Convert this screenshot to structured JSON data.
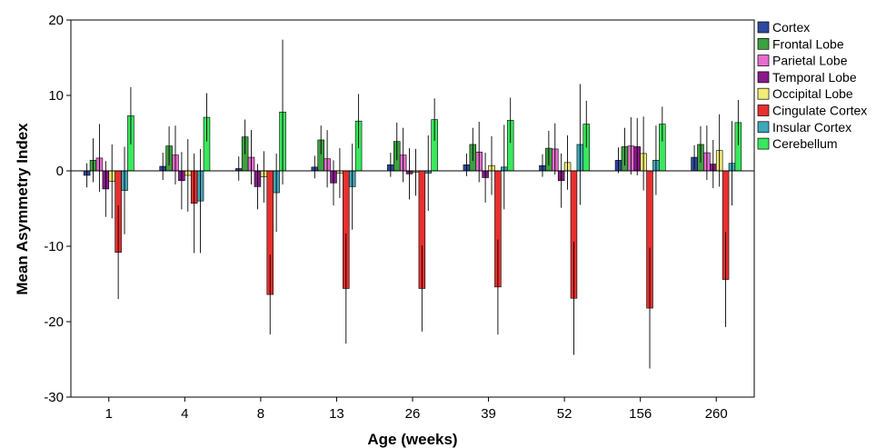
{
  "chart_data": {
    "type": "bar",
    "title": "",
    "xlabel": "Age (weeks)",
    "ylabel": "Mean Asymmetry Index",
    "ylim": [
      -30,
      20
    ],
    "yticks": [
      20,
      10,
      0,
      -10,
      -20,
      -30
    ],
    "grid": false,
    "legend_position": "right",
    "categories": [
      "1",
      "4",
      "8",
      "13",
      "26",
      "39",
      "52",
      "156",
      "260"
    ],
    "series": [
      {
        "name": "Cortex",
        "color": "#2e4a9e",
        "values": [
          -0.6,
          0.6,
          0.3,
          0.5,
          0.8,
          0.8,
          0.7,
          1.4,
          1.8
        ],
        "errors": [
          1.6,
          1.8,
          1.6,
          1.5,
          1.6,
          1.5,
          1.5,
          1.7,
          1.6
        ]
      },
      {
        "name": "Frontal Lobe",
        "color": "#3da041",
        "values": [
          1.4,
          3.3,
          4.5,
          4.1,
          3.9,
          3.5,
          3.0,
          3.2,
          3.5
        ],
        "errors": [
          2.9,
          2.6,
          2.3,
          1.9,
          2.5,
          2.2,
          2.3,
          2.5,
          2.4
        ]
      },
      {
        "name": "Parietal Lobe",
        "color": "#e86ccf",
        "values": [
          1.7,
          2.1,
          1.8,
          1.6,
          2.1,
          2.5,
          2.9,
          3.3,
          2.4
        ],
        "errors": [
          4.5,
          3.9,
          3.6,
          3.8,
          3.6,
          4.0,
          3.4,
          3.8,
          3.6
        ]
      },
      {
        "name": "Temporal Lobe",
        "color": "#8a1a8a",
        "values": [
          -2.4,
          -1.3,
          -2.1,
          -1.6,
          -0.4,
          -0.9,
          -1.3,
          3.2,
          0.9
        ],
        "errors": [
          3.7,
          3.8,
          3.0,
          3.0,
          3.4,
          3.3,
          3.6,
          3.8,
          3.2
        ]
      },
      {
        "name": "Occipital Lobe",
        "color": "#f2ec78",
        "values": [
          -1.4,
          -0.6,
          -0.8,
          -0.3,
          -0.2,
          0.7,
          1.1,
          2.3,
          2.7
        ],
        "errors": [
          4.9,
          4.8,
          3.4,
          3.3,
          3.1,
          3.9,
          3.6,
          4.9,
          4.8
        ]
      },
      {
        "name": "Cingulate Cortex",
        "color": "#e82f2f",
        "values": [
          -10.8,
          -4.3,
          -16.4,
          -15.6,
          -15.6,
          -15.4,
          -16.9,
          -18.2,
          -14.4
        ],
        "errors": [
          6.2,
          6.6,
          5.3,
          7.3,
          5.7,
          6.3,
          7.5,
          8.0,
          6.3
        ]
      },
      {
        "name": "Insular Cortex",
        "color": "#3fa8b8",
        "values": [
          -2.6,
          -4.0,
          -2.9,
          -2.1,
          -0.3,
          0.5,
          3.5,
          1.4,
          1.0
        ],
        "errors": [
          5.8,
          6.9,
          5.2,
          5.7,
          5.0,
          5.6,
          8.0,
          4.6,
          5.6
        ]
      },
      {
        "name": "Cerebellum",
        "color": "#39e85c",
        "values": [
          7.3,
          7.1,
          7.8,
          6.6,
          6.8,
          6.7,
          6.2,
          6.2,
          6.4
        ],
        "errors": [
          3.8,
          3.2,
          9.6,
          3.6,
          2.8,
          3.0,
          3.1,
          2.3,
          3.0
        ]
      }
    ]
  }
}
